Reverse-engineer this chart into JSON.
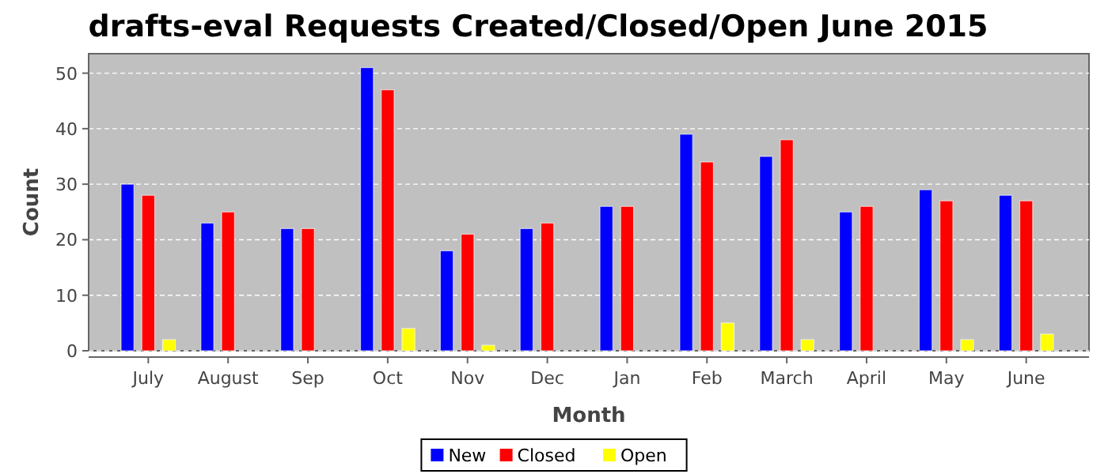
{
  "chart_data": {
    "type": "bar",
    "title": "drafts-eval Requests Created/Closed/Open June 2015",
    "xlabel": "Month",
    "ylabel": "Count",
    "categories": [
      "July",
      "August",
      "Sep",
      "Oct",
      "Nov",
      "Dec",
      "Jan",
      "Feb",
      "March",
      "April",
      "May",
      "June"
    ],
    "series": [
      {
        "name": "New",
        "color": "#0000ff",
        "values": [
          30,
          23,
          22,
          51,
          18,
          22,
          26,
          39,
          35,
          25,
          29,
          28
        ]
      },
      {
        "name": "Closed",
        "color": "#ff0000",
        "values": [
          28,
          25,
          22,
          47,
          21,
          23,
          26,
          34,
          38,
          26,
          27,
          27
        ]
      },
      {
        "name": "Open",
        "color": "#ffff00",
        "values": [
          2,
          0,
          0,
          4,
          1,
          0,
          0,
          5,
          2,
          0,
          2,
          3
        ]
      }
    ],
    "ylim": [
      0,
      53.5
    ],
    "yticks": [
      0,
      10,
      20,
      30,
      40,
      50
    ],
    "grid": "y",
    "legend": "bottom"
  }
}
